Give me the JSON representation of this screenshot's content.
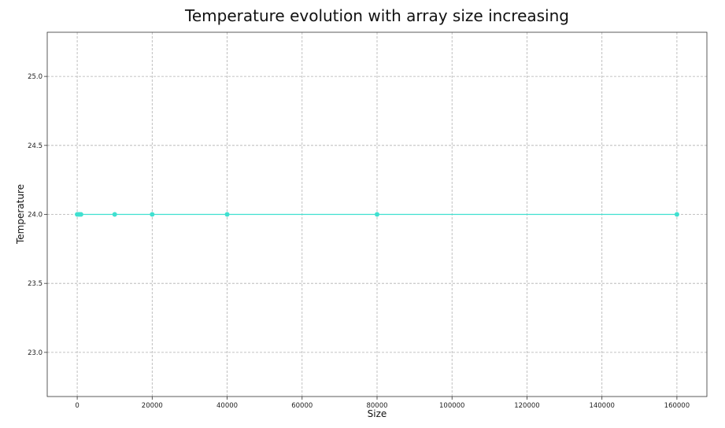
{
  "chart_data": {
    "type": "line",
    "title": "Temperature evolution with array size increasing",
    "xlabel": "Size",
    "ylabel": "Temperature",
    "xlim": [
      -8000,
      168000
    ],
    "ylim": [
      22.68,
      25.32
    ],
    "xticks": [
      0,
      20000,
      40000,
      60000,
      80000,
      100000,
      120000,
      140000,
      160000
    ],
    "yticks": [
      23.0,
      23.5,
      24.0,
      24.5,
      25.0
    ],
    "xtick_labels": [
      "0",
      "20000",
      "40000",
      "60000",
      "80000",
      "100000",
      "120000",
      "140000",
      "160000"
    ],
    "ytick_labels": [
      "23.0",
      "23.5",
      "24.0",
      "24.5",
      "25.0"
    ],
    "grid": true,
    "series": [
      {
        "color": "#40e0d0",
        "marker": "circle",
        "x": [
          0,
          500,
          1000,
          10000,
          20000,
          40000,
          80000,
          160000
        ],
        "y": [
          24.0,
          24.0,
          24.0,
          24.0,
          24.0,
          24.0,
          24.0,
          24.0
        ]
      }
    ]
  }
}
